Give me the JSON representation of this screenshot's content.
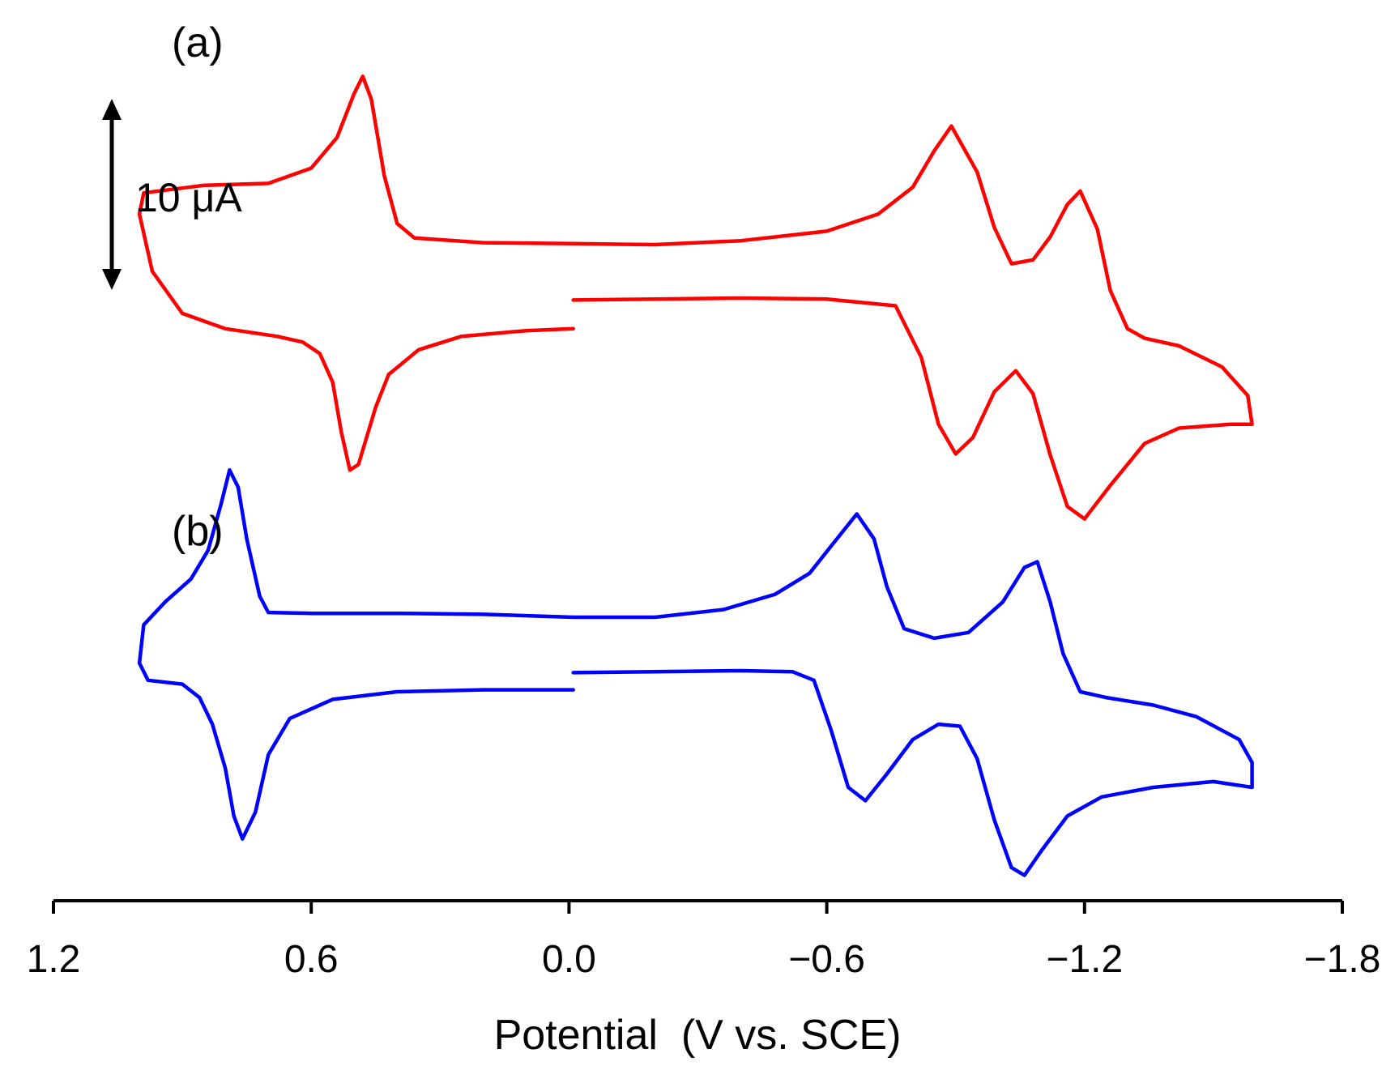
{
  "chart_data": {
    "type": "line",
    "xlabel": "Potential  (V vs. SCE)",
    "x_ticks": [
      "1.2",
      "0.6",
      "0.0",
      "−0.6",
      "−1.2",
      "−1.8"
    ],
    "x_tick_values": [
      1.2,
      0.6,
      0.0,
      -0.6,
      -1.2,
      -1.8
    ],
    "xlim": [
      1.2,
      -1.8
    ],
    "x_reversed": true,
    "y_axis_shown": false,
    "scale_bar": {
      "label": "10 μA",
      "value_uA": 10
    },
    "series": [
      {
        "panel": "(a)",
        "color": "#ff0000",
        "forward": [
          [
            -0.01,
            -1.5
          ],
          [
            -0.2,
            -1.45
          ],
          [
            -0.4,
            -1.4
          ],
          [
            -0.6,
            -1.45
          ],
          [
            -0.76,
            -1.8
          ],
          [
            -0.82,
            -4.5
          ],
          [
            -0.86,
            -8.0
          ],
          [
            -0.9,
            -9.55
          ],
          [
            -0.94,
            -8.7
          ],
          [
            -0.99,
            -6.3
          ],
          [
            -1.04,
            -5.2
          ],
          [
            -1.08,
            -6.4
          ],
          [
            -1.12,
            -9.6
          ],
          [
            -1.16,
            -12.3
          ],
          [
            -1.2,
            -12.95
          ],
          [
            -1.26,
            -11.2
          ],
          [
            -1.34,
            -9.0
          ],
          [
            -1.42,
            -8.2
          ],
          [
            -1.54,
            -8.0
          ],
          [
            -1.59,
            -8.0
          ]
        ],
        "reverse": [
          [
            -1.59,
            -8.0
          ],
          [
            -1.58,
            -6.5
          ],
          [
            -1.52,
            -5.0
          ],
          [
            -1.42,
            -3.9
          ],
          [
            -1.34,
            -3.5
          ],
          [
            -1.3,
            -3.0
          ],
          [
            -1.26,
            -1.0
          ],
          [
            -1.23,
            2.2
          ],
          [
            -1.19,
            4.2
          ],
          [
            -1.16,
            3.5
          ],
          [
            -1.12,
            1.8
          ],
          [
            -1.08,
            0.6
          ],
          [
            -1.03,
            0.4
          ],
          [
            -0.99,
            2.3
          ],
          [
            -0.95,
            5.2
          ],
          [
            -0.89,
            7.6
          ],
          [
            -0.85,
            6.3
          ],
          [
            -0.8,
            4.4
          ],
          [
            -0.72,
            3.0
          ],
          [
            -0.6,
            2.1
          ],
          [
            -0.4,
            1.6
          ],
          [
            -0.2,
            1.4
          ],
          [
            -0.01,
            1.45
          ],
          [
            0.2,
            1.5
          ],
          [
            0.36,
            1.75
          ],
          [
            0.4,
            2.5
          ],
          [
            0.43,
            5.0
          ],
          [
            0.46,
            9.0
          ],
          [
            0.48,
            10.2
          ],
          [
            0.5,
            9.3
          ],
          [
            0.54,
            7.0
          ],
          [
            0.6,
            5.4
          ],
          [
            0.7,
            4.6
          ],
          [
            0.85,
            4.5
          ],
          [
            0.99,
            4.1
          ],
          [
            1.0,
            3.0
          ],
          [
            0.97,
            0.0
          ],
          [
            0.9,
            -2.2
          ],
          [
            0.8,
            -3.0
          ],
          [
            0.68,
            -3.4
          ],
          [
            0.62,
            -3.7
          ],
          [
            0.58,
            -4.3
          ],
          [
            0.55,
            -5.8
          ],
          [
            0.53,
            -8.4
          ],
          [
            0.51,
            -10.4
          ],
          [
            0.49,
            -10.1
          ],
          [
            0.45,
            -7.1
          ],
          [
            0.42,
            -5.4
          ],
          [
            0.35,
            -4.1
          ],
          [
            0.25,
            -3.4
          ],
          [
            0.1,
            -3.1
          ],
          [
            -0.01,
            -3.0
          ]
        ]
      },
      {
        "panel": "(b)",
        "color": "#0000ff",
        "forward": [
          [
            -0.01,
            -1.5
          ],
          [
            -0.2,
            -1.45
          ],
          [
            -0.4,
            -1.4
          ],
          [
            -0.52,
            -1.45
          ],
          [
            -0.57,
            -1.9
          ],
          [
            -0.61,
            -4.5
          ],
          [
            -0.65,
            -7.5
          ],
          [
            -0.69,
            -8.2
          ],
          [
            -0.74,
            -6.8
          ],
          [
            -0.8,
            -5.0
          ],
          [
            -0.86,
            -4.2
          ],
          [
            -0.91,
            -4.3
          ],
          [
            -0.95,
            -6.0
          ],
          [
            -0.99,
            -9.2
          ],
          [
            -1.03,
            -11.7
          ],
          [
            -1.06,
            -12.1
          ],
          [
            -1.1,
            -10.8
          ],
          [
            -1.16,
            -9.0
          ],
          [
            -1.24,
            -8.0
          ],
          [
            -1.36,
            -7.5
          ],
          [
            -1.5,
            -7.2
          ],
          [
            -1.59,
            -7.5
          ]
        ],
        "reverse": [
          [
            -1.59,
            -7.5
          ],
          [
            -1.59,
            -6.2
          ],
          [
            -1.56,
            -5.0
          ],
          [
            -1.46,
            -3.8
          ],
          [
            -1.36,
            -3.2
          ],
          [
            -1.25,
            -2.8
          ],
          [
            -1.19,
            -2.5
          ],
          [
            -1.15,
            -0.5
          ],
          [
            -1.12,
            2.2
          ],
          [
            -1.09,
            4.3
          ],
          [
            -1.06,
            4.0
          ],
          [
            -1.01,
            2.2
          ],
          [
            -0.93,
            0.6
          ],
          [
            -0.85,
            0.3
          ],
          [
            -0.78,
            0.8
          ],
          [
            -0.74,
            3.0
          ],
          [
            -0.71,
            5.5
          ],
          [
            -0.67,
            6.8
          ],
          [
            -0.62,
            5.4
          ],
          [
            -0.56,
            3.7
          ],
          [
            -0.48,
            2.6
          ],
          [
            -0.36,
            1.8
          ],
          [
            -0.2,
            1.4
          ],
          [
            -0.01,
            1.4
          ],
          [
            0.2,
            1.55
          ],
          [
            0.4,
            1.6
          ],
          [
            0.6,
            1.6
          ],
          [
            0.7,
            1.65
          ],
          [
            0.72,
            2.5
          ],
          [
            0.75,
            5.5
          ],
          [
            0.77,
            8.2
          ],
          [
            0.79,
            9.1
          ],
          [
            0.81,
            7.3
          ],
          [
            0.84,
            4.9
          ],
          [
            0.88,
            3.4
          ],
          [
            0.94,
            2.2
          ],
          [
            0.99,
            1.0
          ],
          [
            1.0,
            -1.0
          ],
          [
            0.98,
            -1.9
          ],
          [
            0.9,
            -2.1
          ],
          [
            0.86,
            -2.8
          ],
          [
            0.83,
            -4.2
          ],
          [
            0.8,
            -6.5
          ],
          [
            0.78,
            -9.0
          ],
          [
            0.76,
            -10.2
          ],
          [
            0.73,
            -8.8
          ],
          [
            0.7,
            -5.8
          ],
          [
            0.65,
            -3.9
          ],
          [
            0.55,
            -2.9
          ],
          [
            0.4,
            -2.5
          ],
          [
            0.2,
            -2.4
          ],
          [
            -0.01,
            -2.4
          ]
        ]
      }
    ]
  }
}
